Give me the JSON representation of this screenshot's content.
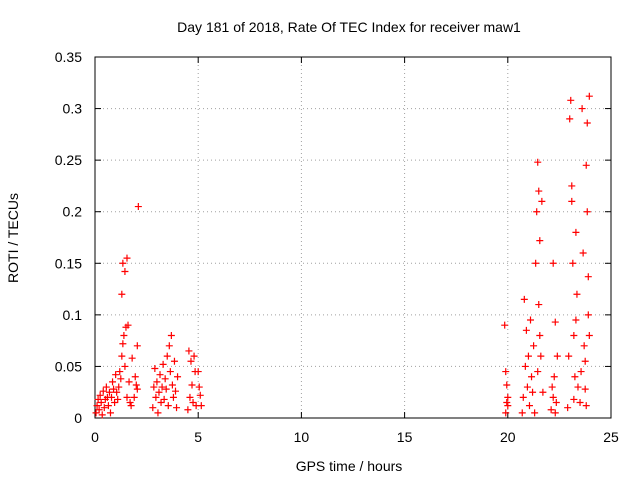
{
  "chart_data": {
    "type": "scatter",
    "title": "Day 181 of 2018, Rate Of TEC Index for receiver maw1",
    "xlabel": "GPS time / hours",
    "ylabel": "ROTI / TECUs",
    "xlim": [
      0,
      25
    ],
    "ylim": [
      0,
      0.35
    ],
    "x_ticks": [
      0,
      5,
      10,
      15,
      20,
      25
    ],
    "y_ticks": [
      0,
      0.05,
      0.1,
      0.15,
      0.2,
      0.25,
      0.3,
      0.35
    ],
    "x_tick_labels": [
      "0",
      "5",
      "10",
      "15",
      "20",
      "25"
    ],
    "y_tick_labels": [
      "0",
      "0.05",
      "0.1",
      "0.15",
      "0.2",
      "0.25",
      "0.3",
      "0.35"
    ],
    "grid": true,
    "marker": "+",
    "marker_color": "#ff0000",
    "series": [
      {
        "name": "ROTI",
        "points": [
          [
            0.05,
            0.005
          ],
          [
            0.1,
            0.012
          ],
          [
            0.15,
            0.018
          ],
          [
            0.2,
            0.008
          ],
          [
            0.25,
            0.022
          ],
          [
            0.3,
            0.015
          ],
          [
            0.35,
            0.003
          ],
          [
            0.4,
            0.026
          ],
          [
            0.45,
            0.01
          ],
          [
            0.5,
            0.018
          ],
          [
            0.55,
            0.03
          ],
          [
            0.6,
            0.02
          ],
          [
            0.65,
            0.012
          ],
          [
            0.7,
            0.025
          ],
          [
            0.75,
            0.005
          ],
          [
            0.8,
            0.02
          ],
          [
            0.85,
            0.035
          ],
          [
            0.9,
            0.028
          ],
          [
            0.95,
            0.015
          ],
          [
            1.0,
            0.042
          ],
          [
            1.05,
            0.025
          ],
          [
            1.1,
            0.018
          ],
          [
            1.15,
            0.03
          ],
          [
            1.2,
            0.045
          ],
          [
            1.25,
            0.038
          ],
          [
            1.3,
            0.06
          ],
          [
            1.3,
            0.12
          ],
          [
            1.35,
            0.072
          ],
          [
            1.35,
            0.15
          ],
          [
            1.4,
            0.08
          ],
          [
            1.45,
            0.05
          ],
          [
            1.45,
            0.142
          ],
          [
            1.5,
            0.088
          ],
          [
            1.55,
            0.155
          ],
          [
            1.55,
            0.02
          ],
          [
            1.6,
            0.09
          ],
          [
            1.65,
            0.035
          ],
          [
            1.7,
            0.015
          ],
          [
            1.75,
            0.012
          ],
          [
            1.8,
            0.058
          ],
          [
            1.9,
            0.02
          ],
          [
            1.95,
            0.04
          ],
          [
            2.0,
            0.032
          ],
          [
            2.05,
            0.028
          ],
          [
            2.1,
            0.205
          ],
          [
            2.05,
            0.07
          ],
          [
            2.8,
            0.01
          ],
          [
            2.85,
            0.03
          ],
          [
            2.9,
            0.048
          ],
          [
            2.95,
            0.02
          ],
          [
            3.0,
            0.035
          ],
          [
            3.05,
            0.005
          ],
          [
            3.1,
            0.025
          ],
          [
            3.15,
            0.042
          ],
          [
            3.2,
            0.015
          ],
          [
            3.25,
            0.03
          ],
          [
            3.3,
            0.052
          ],
          [
            3.35,
            0.018
          ],
          [
            3.4,
            0.038
          ],
          [
            3.45,
            0.028
          ],
          [
            3.5,
            0.06
          ],
          [
            3.55,
            0.012
          ],
          [
            3.6,
            0.07
          ],
          [
            3.65,
            0.045
          ],
          [
            3.7,
            0.08
          ],
          [
            3.75,
            0.032
          ],
          [
            3.8,
            0.02
          ],
          [
            3.85,
            0.055
          ],
          [
            3.9,
            0.026
          ],
          [
            3.95,
            0.01
          ],
          [
            4.0,
            0.04
          ],
          [
            4.5,
            0.008
          ],
          [
            4.55,
            0.065
          ],
          [
            4.6,
            0.02
          ],
          [
            4.65,
            0.055
          ],
          [
            4.7,
            0.032
          ],
          [
            4.75,
            0.015
          ],
          [
            4.8,
            0.06
          ],
          [
            4.85,
            0.045
          ],
          [
            4.9,
            0.012
          ],
          [
            5.0,
            0.045
          ],
          [
            5.05,
            0.03
          ],
          [
            5.1,
            0.022
          ],
          [
            5.15,
            0.012
          ],
          [
            19.85,
            0.09
          ],
          [
            19.9,
            0.045
          ],
          [
            19.95,
            0.032
          ],
          [
            20.0,
            0.02
          ],
          [
            20.0,
            0.012
          ],
          [
            19.9,
            0.005
          ],
          [
            19.95,
            0.015
          ],
          [
            20.7,
            0.005
          ],
          [
            20.75,
            0.02
          ],
          [
            20.8,
            0.115
          ],
          [
            20.85,
            0.05
          ],
          [
            20.9,
            0.085
          ],
          [
            20.95,
            0.03
          ],
          [
            21.0,
            0.06
          ],
          [
            21.05,
            0.012
          ],
          [
            21.1,
            0.095
          ],
          [
            21.15,
            0.04
          ],
          [
            21.2,
            0.025
          ],
          [
            21.25,
            0.07
          ],
          [
            21.3,
            0.005
          ],
          [
            21.35,
            0.15
          ],
          [
            21.4,
            0.2
          ],
          [
            21.45,
            0.045
          ],
          [
            21.5,
            0.22
          ],
          [
            21.55,
            0.172
          ],
          [
            21.6,
            0.06
          ],
          [
            21.65,
            0.21
          ],
          [
            21.7,
            0.025
          ],
          [
            21.45,
            0.248
          ],
          [
            21.5,
            0.11
          ],
          [
            21.55,
            0.08
          ],
          [
            22.1,
            0.008
          ],
          [
            22.15,
            0.03
          ],
          [
            22.2,
            0.15
          ],
          [
            22.25,
            0.04
          ],
          [
            22.3,
            0.093
          ],
          [
            22.35,
            0.015
          ],
          [
            22.4,
            0.06
          ],
          [
            22.2,
            0.02
          ],
          [
            22.3,
            0.005
          ],
          [
            22.9,
            0.01
          ],
          [
            22.95,
            0.06
          ],
          [
            23.0,
            0.29
          ],
          [
            23.05,
            0.308
          ],
          [
            23.1,
            0.21
          ],
          [
            23.15,
            0.15
          ],
          [
            23.2,
            0.08
          ],
          [
            23.25,
            0.04
          ],
          [
            23.3,
            0.18
          ],
          [
            23.35,
            0.12
          ],
          [
            23.1,
            0.225
          ],
          [
            23.2,
            0.018
          ],
          [
            23.3,
            0.095
          ],
          [
            23.4,
            0.03
          ],
          [
            23.5,
            0.015
          ],
          [
            23.55,
            0.045
          ],
          [
            23.6,
            0.3
          ],
          [
            23.65,
            0.16
          ],
          [
            23.7,
            0.07
          ],
          [
            23.75,
            0.028
          ],
          [
            23.8,
            0.245
          ],
          [
            23.85,
            0.2
          ],
          [
            23.9,
            0.1
          ],
          [
            23.95,
            0.312
          ],
          [
            23.85,
            0.286
          ],
          [
            23.9,
            0.137
          ],
          [
            23.95,
            0.08
          ],
          [
            23.8,
            0.012
          ],
          [
            23.75,
            0.055
          ]
        ]
      }
    ]
  }
}
